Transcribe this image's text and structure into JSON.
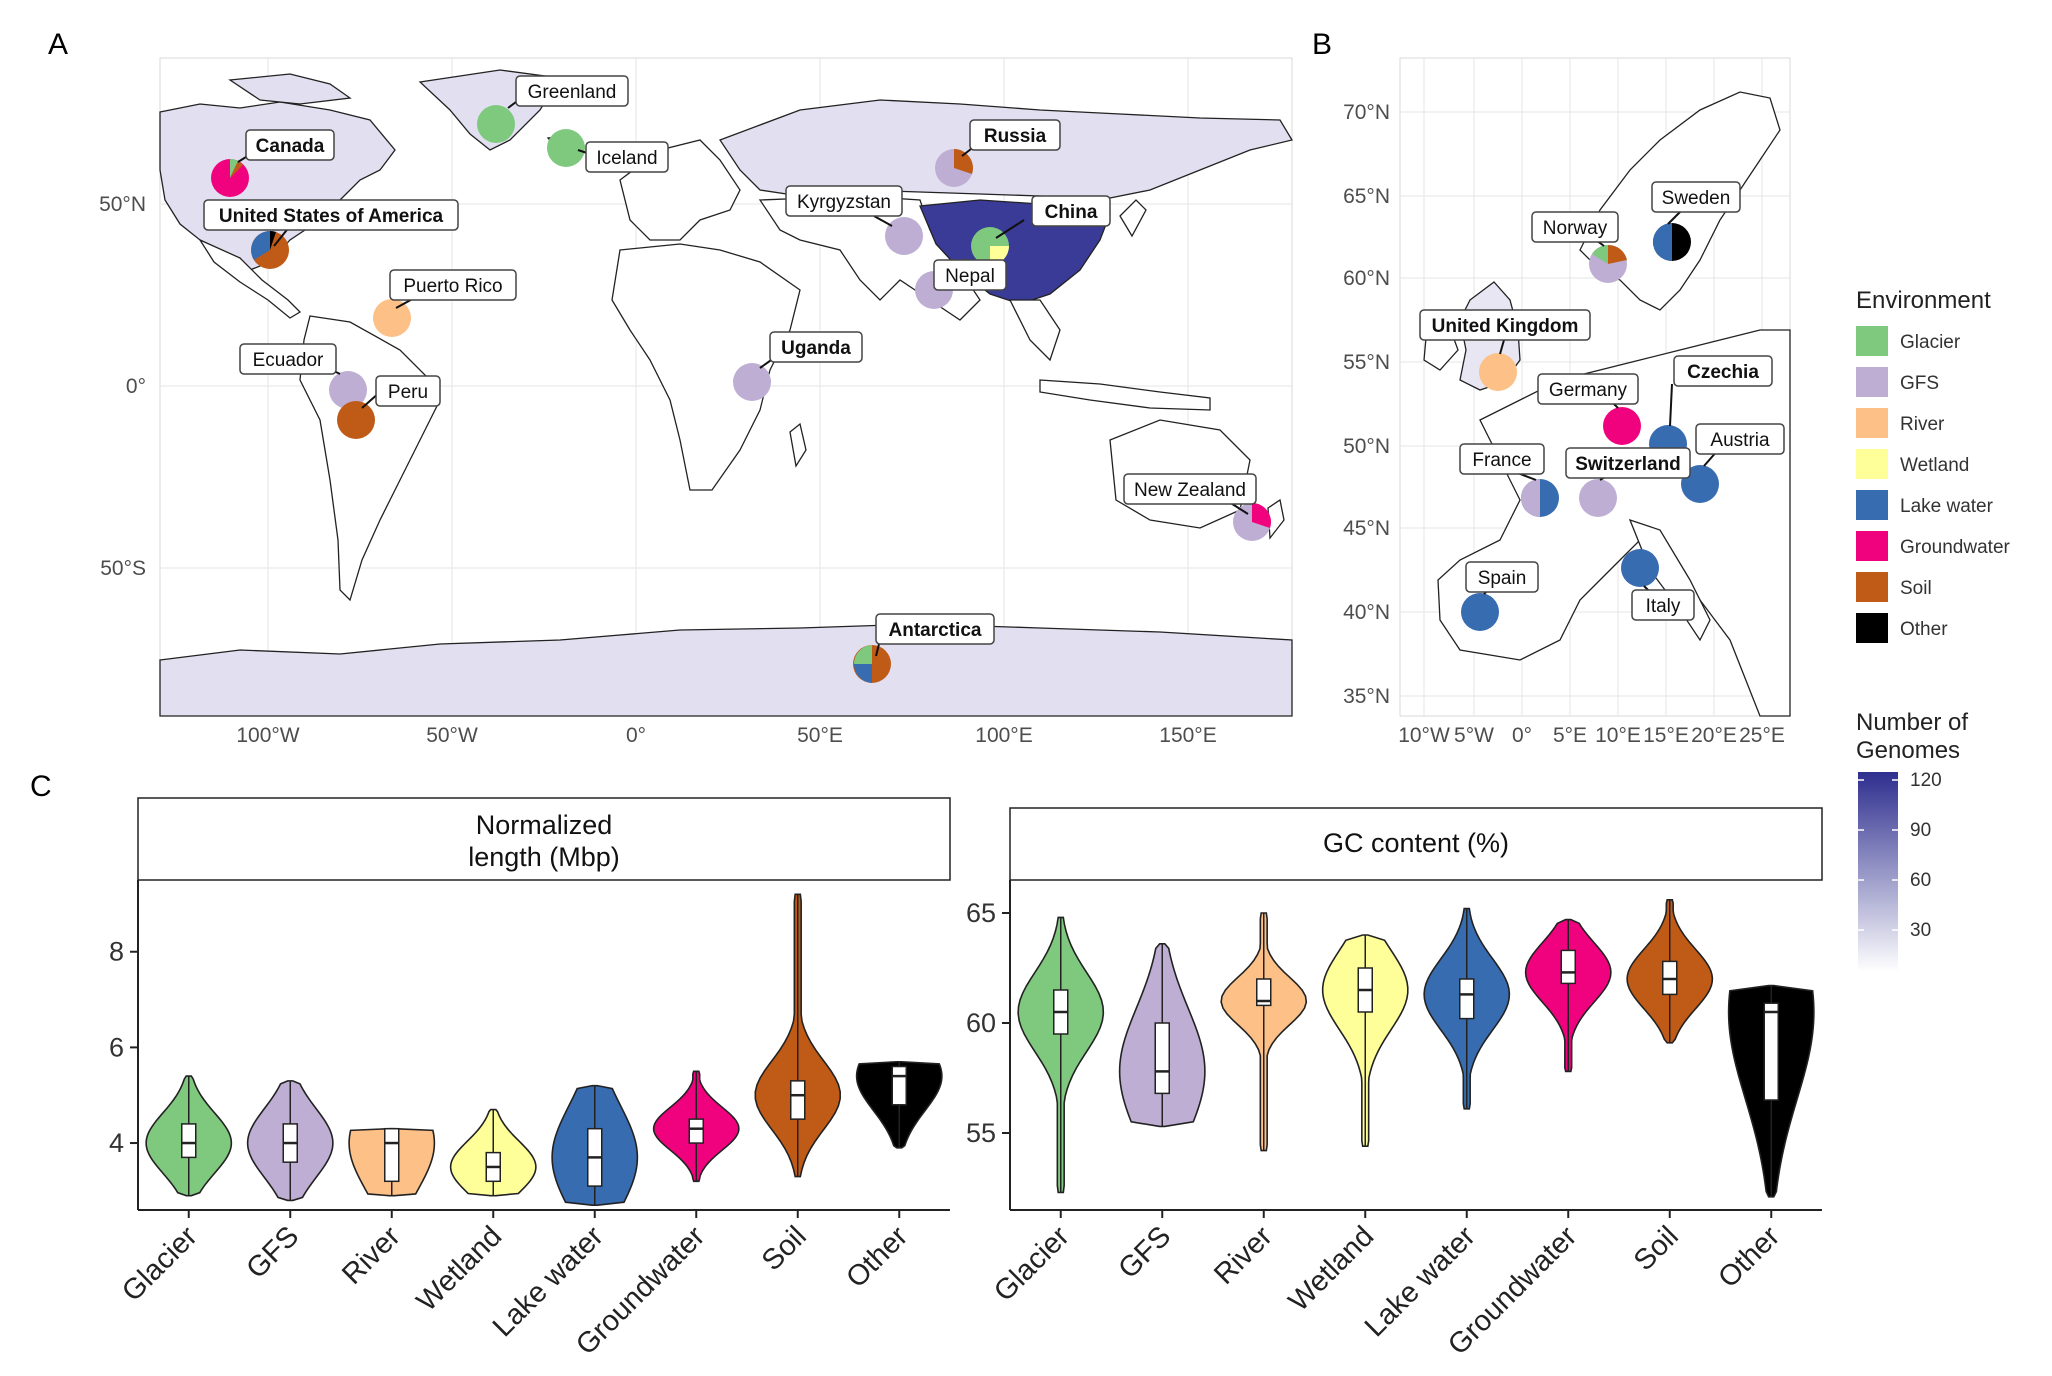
{
  "panels": {
    "a": "A",
    "b": "B",
    "c": "C"
  },
  "panel_a": {
    "y_ticks": [
      "50°N",
      "0°",
      "50°S"
    ],
    "x_ticks": [
      "100°W",
      "50°W",
      "0°",
      "50°E",
      "100°E",
      "150°E"
    ],
    "locations": [
      {
        "label": "Greenland",
        "bold": false,
        "env": [
          "Glacier"
        ]
      },
      {
        "label": "Iceland",
        "bold": false,
        "env": [
          "Glacier"
        ]
      },
      {
        "label": "Canada",
        "bold": true,
        "env": [
          "Groundwater",
          "Glacier",
          "Soil"
        ]
      },
      {
        "label": "United States of America",
        "bold": true,
        "env": [
          "Soil",
          "Lake water",
          "Other"
        ]
      },
      {
        "label": "Puerto Rico",
        "bold": false,
        "env": [
          "River"
        ]
      },
      {
        "label": "Ecuador",
        "bold": false,
        "env": [
          "GFS"
        ]
      },
      {
        "label": "Peru",
        "bold": false,
        "env": [
          "Soil"
        ]
      },
      {
        "label": "Uganda",
        "bold": true,
        "env": [
          "GFS"
        ]
      },
      {
        "label": "Kyrgyzstan",
        "bold": false,
        "env": [
          "GFS"
        ]
      },
      {
        "label": "Nepal",
        "bold": false,
        "env": [
          "GFS"
        ]
      },
      {
        "label": "China",
        "bold": true,
        "env": [
          "Glacier",
          "Wetland"
        ]
      },
      {
        "label": "Russia",
        "bold": true,
        "env": [
          "GFS",
          "Soil"
        ]
      },
      {
        "label": "New Zealand",
        "bold": false,
        "env": [
          "GFS",
          "Groundwater"
        ]
      },
      {
        "label": "Antarctica",
        "bold": true,
        "env": [
          "Soil",
          "Lake water",
          "Glacier"
        ]
      }
    ]
  },
  "panel_b": {
    "y_ticks": [
      "70°N",
      "65°N",
      "60°N",
      "55°N",
      "50°N",
      "45°N",
      "40°N",
      "35°N"
    ],
    "x_ticks": [
      "10°W",
      "5°W",
      "0°",
      "5°E",
      "10°E",
      "15°E",
      "20°E",
      "25°E"
    ],
    "locations": [
      {
        "label": "Sweden",
        "bold": false,
        "env": [
          "Lake water",
          "Other"
        ]
      },
      {
        "label": "Norway",
        "bold": false,
        "env": [
          "GFS",
          "Soil",
          "Glacier"
        ]
      },
      {
        "label": "United Kingdom",
        "bold": true,
        "env": [
          "River"
        ]
      },
      {
        "label": "Germany",
        "bold": false,
        "env": [
          "Groundwater"
        ]
      },
      {
        "label": "Czechia",
        "bold": true,
        "env": [
          "Lake water"
        ]
      },
      {
        "label": "Austria",
        "bold": false,
        "env": [
          "Lake water"
        ]
      },
      {
        "label": "France",
        "bold": false,
        "env": [
          "GFS",
          "Lake water"
        ]
      },
      {
        "label": "Switzerland",
        "bold": true,
        "env": [
          "GFS"
        ]
      },
      {
        "label": "Spain",
        "bold": false,
        "env": [
          "Lake water"
        ]
      },
      {
        "label": "Italy",
        "bold": false,
        "env": [
          "Lake water"
        ]
      }
    ]
  },
  "legend": {
    "environment_title": "Environment",
    "items": [
      {
        "label": "Glacier",
        "color": "#7fc97f"
      },
      {
        "label": "GFS",
        "color": "#beaed4"
      },
      {
        "label": "River",
        "color": "#fdc086"
      },
      {
        "label": "Wetland",
        "color": "#ffff99"
      },
      {
        "label": "Lake water",
        "color": "#386cb0"
      },
      {
        "label": "Groundwater",
        "color": "#f0027f"
      },
      {
        "label": "Soil",
        "color": "#bf5b17"
      },
      {
        "label": "Other",
        "color": "#000000"
      }
    ],
    "genomes_title_1": "Number of",
    "genomes_title_2": "Genomes",
    "genomes_ticks": [
      "120",
      "90",
      "60",
      "30"
    ],
    "genomes_low_color": "#ffffff",
    "genomes_high_color": "#2e2e8f"
  },
  "chart_data": [
    {
      "type": "violin",
      "title_line1": "Normalized",
      "title_line2": "length (Mbp)",
      "categories": [
        "Glacier",
        "GFS",
        "River",
        "Wetland",
        "Lake water",
        "Groundwater",
        "Soil",
        "Other"
      ],
      "ylim": [
        2.6,
        9.5
      ],
      "y_ticks": [
        4,
        6,
        8
      ],
      "y_tick_labels": [
        "4",
        "6",
        "8"
      ],
      "distributions": [
        {
          "min": 2.9,
          "q1": 3.7,
          "median": 4.0,
          "q3": 4.4,
          "max": 5.4
        },
        {
          "min": 2.8,
          "q1": 3.6,
          "median": 4.0,
          "q3": 4.4,
          "max": 5.3
        },
        {
          "min": 2.9,
          "q1": 3.2,
          "median": 4.0,
          "q3": 4.3,
          "max": 4.3
        },
        {
          "min": 2.9,
          "q1": 3.2,
          "median": 3.5,
          "q3": 3.8,
          "max": 4.7
        },
        {
          "min": 2.7,
          "q1": 3.1,
          "median": 3.7,
          "q3": 4.3,
          "max": 5.2
        },
        {
          "min": 3.2,
          "q1": 4.0,
          "median": 4.3,
          "q3": 4.5,
          "max": 5.5
        },
        {
          "min": 3.3,
          "q1": 4.5,
          "median": 5.0,
          "q3": 5.3,
          "max": 9.2
        },
        {
          "min": 3.9,
          "q1": 4.8,
          "median": 5.4,
          "q3": 5.6,
          "max": 5.7
        }
      ]
    },
    {
      "type": "violin",
      "title_line1": "GC content (%)",
      "title_line2": "",
      "categories": [
        "Glacier",
        "GFS",
        "River",
        "Wetland",
        "Lake water",
        "Groundwater",
        "Soil",
        "Other"
      ],
      "ylim": [
        51.5,
        66.5
      ],
      "y_ticks": [
        55,
        60,
        65
      ],
      "y_tick_labels": [
        "55",
        "60",
        "65"
      ],
      "distributions": [
        {
          "min": 52.3,
          "q1": 59.5,
          "median": 60.5,
          "q3": 61.5,
          "max": 64.8
        },
        {
          "min": 55.3,
          "q1": 56.8,
          "median": 57.8,
          "q3": 60.0,
          "max": 63.6
        },
        {
          "min": 54.2,
          "q1": 60.8,
          "median": 61.0,
          "q3": 62.0,
          "max": 65.0
        },
        {
          "min": 54.4,
          "q1": 60.5,
          "median": 61.5,
          "q3": 62.5,
          "max": 64.0
        },
        {
          "min": 56.1,
          "q1": 60.2,
          "median": 61.3,
          "q3": 62.0,
          "max": 65.2
        },
        {
          "min": 57.8,
          "q1": 61.8,
          "median": 62.3,
          "q3": 63.3,
          "max": 64.7
        },
        {
          "min": 59.1,
          "q1": 61.3,
          "median": 62.0,
          "q3": 62.8,
          "max": 65.6
        },
        {
          "min": 52.1,
          "q1": 56.5,
          "median": 60.5,
          "q3": 60.9,
          "max": 61.7
        }
      ]
    }
  ]
}
